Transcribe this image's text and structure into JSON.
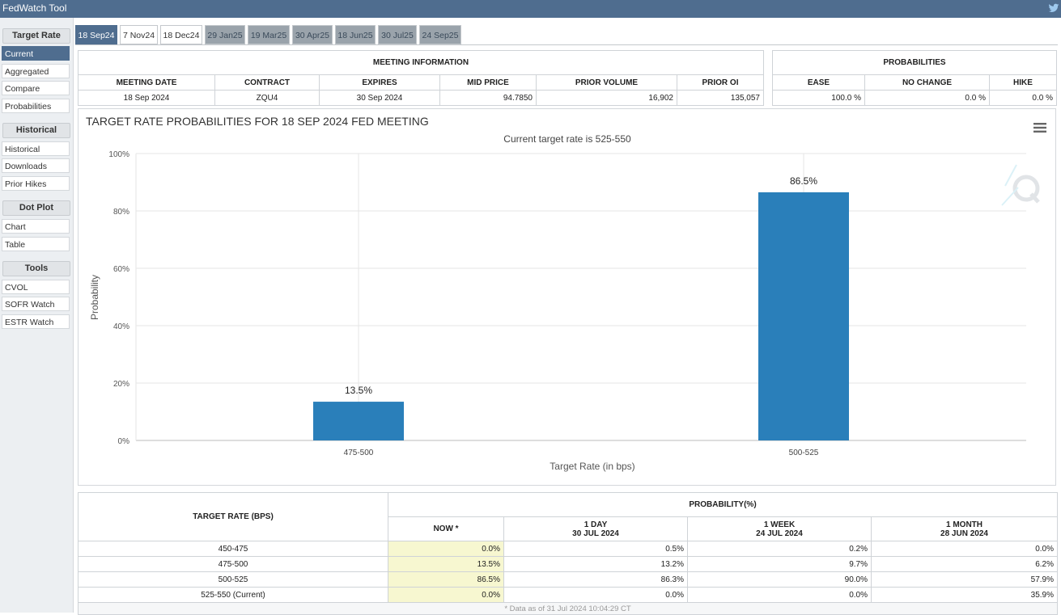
{
  "app": {
    "title": "FedWatch Tool"
  },
  "sidebar": {
    "groups": [
      {
        "label": "Target Rate",
        "items": [
          "Current",
          "Aggregated",
          "Compare",
          "Probabilities"
        ]
      },
      {
        "label": "Historical",
        "items": [
          "Historical",
          "Downloads",
          "Prior Hikes"
        ]
      },
      {
        "label": "Dot Plot",
        "items": [
          "Chart",
          "Table"
        ]
      },
      {
        "label": "Tools",
        "items": [
          "CVOL",
          "SOFR Watch",
          "ESTR Watch"
        ]
      }
    ],
    "active_item": "Current"
  },
  "tabs": [
    "18 Sep24",
    "7 Nov24",
    "18 Dec24",
    "29 Jan25",
    "19 Mar25",
    "30 Apr25",
    "18 Jun25",
    "30 Jul25",
    "24 Sep25"
  ],
  "meeting_info": {
    "title": "MEETING INFORMATION",
    "headers": [
      "MEETING DATE",
      "CONTRACT",
      "EXPIRES",
      "MID PRICE",
      "PRIOR VOLUME",
      "PRIOR OI"
    ],
    "values": [
      "18 Sep 2024",
      "ZQU4",
      "30 Sep 2024",
      "94.7850",
      "16,902",
      "135,057"
    ]
  },
  "probabilities": {
    "title": "PROBABILITIES",
    "headers": [
      "EASE",
      "NO CHANGE",
      "HIKE"
    ],
    "values": [
      "100.0 %",
      "0.0 %",
      "0.0 %"
    ]
  },
  "chart": {
    "menu_icon": "hamburger-menu-icon",
    "watermark_icon": "cme-q-logo"
  },
  "chart_data": {
    "type": "bar",
    "title": "TARGET RATE PROBABILITIES FOR 18 SEP 2024 FED MEETING",
    "subtitle": "Current target rate is 525-550",
    "xlabel": "Target Rate (in bps)",
    "ylabel": "Probability",
    "categories": [
      "475-500",
      "500-525"
    ],
    "values": [
      13.5,
      86.5
    ],
    "data_labels": [
      "13.5%",
      "86.5%"
    ],
    "ylim": [
      0,
      100
    ],
    "yticks": [
      "0%",
      "20%",
      "40%",
      "60%",
      "80%",
      "100%"
    ],
    "grid": true,
    "color": "#2a7fba"
  },
  "prob_table": {
    "rate_header": "TARGET RATE (BPS)",
    "group_header": "PROBABILITY(%)",
    "columns": [
      {
        "line1": "NOW *",
        "line2": ""
      },
      {
        "line1": "1 DAY",
        "line2": "30 JUL 2024"
      },
      {
        "line1": "1 WEEK",
        "line2": "24 JUL 2024"
      },
      {
        "line1": "1 MONTH",
        "line2": "28 JUN 2024"
      }
    ],
    "rows": [
      {
        "rate": "450-475",
        "vals": [
          "0.0%",
          "0.5%",
          "0.2%",
          "0.0%"
        ]
      },
      {
        "rate": "475-500",
        "vals": [
          "13.5%",
          "13.2%",
          "9.7%",
          "6.2%"
        ]
      },
      {
        "rate": "500-525",
        "vals": [
          "86.5%",
          "86.3%",
          "90.0%",
          "57.9%"
        ]
      },
      {
        "rate": "525-550 (Current)",
        "vals": [
          "0.0%",
          "0.0%",
          "0.0%",
          "35.9%"
        ]
      }
    ],
    "footnote": "* Data as of 31 Jul 2024 10:04:29 CT",
    "now_highlight": "#f7f7d0"
  }
}
